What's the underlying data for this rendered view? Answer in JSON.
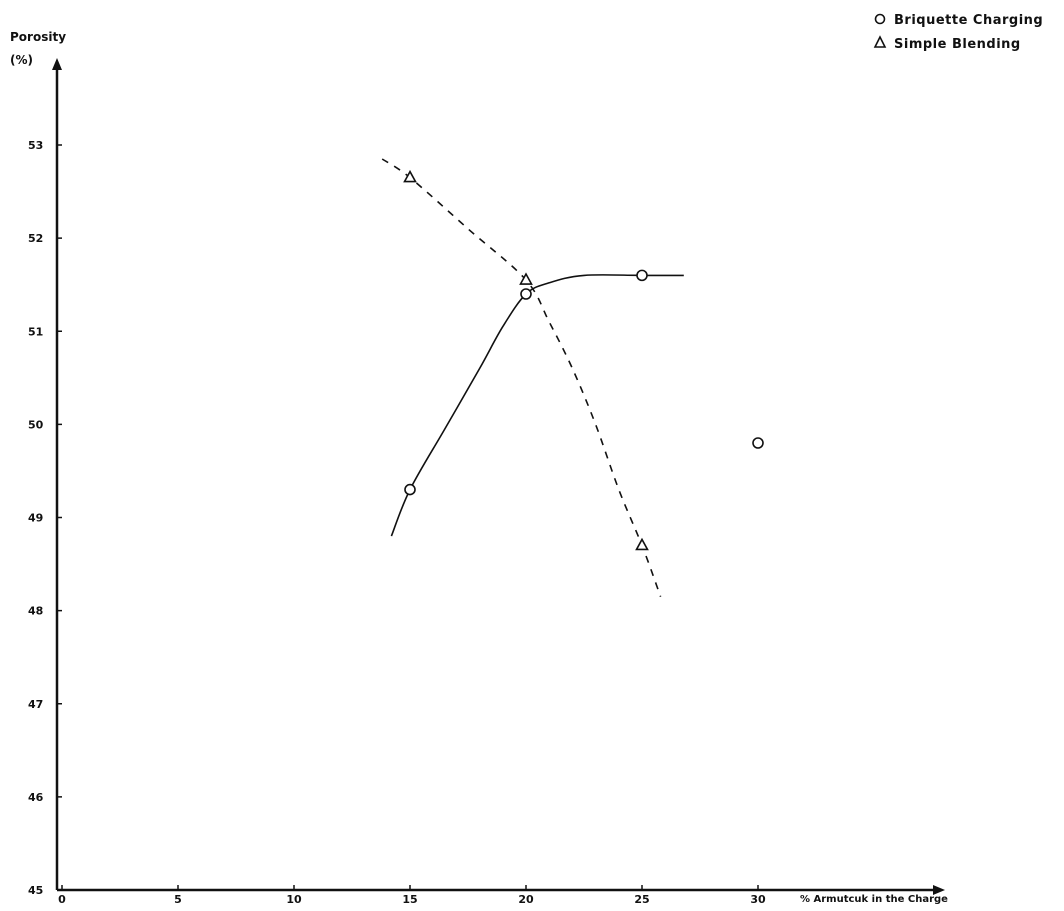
{
  "chart_data": {
    "type": "scatter",
    "title": "",
    "ylabel_line1": "Porosity",
    "ylabel_line2": "(%)",
    "xlabel": "% Armutcuk in the Charge",
    "xlim": [
      0,
      30
    ],
    "ylim": [
      45,
      53
    ],
    "xticks": [
      {
        "value": 0,
        "label": "0"
      },
      {
        "value": 5,
        "label": "5"
      },
      {
        "value": 10,
        "label": "10"
      },
      {
        "value": 15,
        "label": "15"
      },
      {
        "value": 20,
        "label": "20"
      },
      {
        "value": 25,
        "label": "25"
      },
      {
        "value": 30,
        "label": "30"
      }
    ],
    "yticks": [
      {
        "value": 45,
        "label": "45"
      },
      {
        "value": 46,
        "label": "46"
      },
      {
        "value": 47,
        "label": "47"
      },
      {
        "value": 48,
        "label": "48"
      },
      {
        "value": 49,
        "label": "49"
      },
      {
        "value": 50,
        "label": "50"
      },
      {
        "value": 51,
        "label": "51"
      },
      {
        "value": 52,
        "label": "52"
      },
      {
        "value": 53,
        "label": "53"
      }
    ],
    "grid": false,
    "legend_position": "top-right",
    "series": [
      {
        "name": "Briquette Charging",
        "marker": "circle",
        "line_style": "solid",
        "points": [
          {
            "x": 15,
            "y": 49.3
          },
          {
            "x": 20,
            "y": 51.4
          },
          {
            "x": 25,
            "y": 51.6
          },
          {
            "x": 30,
            "y": 49.8
          }
        ],
        "fit_curve": [
          {
            "x": 14.2,
            "y": 48.8
          },
          {
            "x": 15,
            "y": 49.3
          },
          {
            "x": 16.5,
            "y": 49.95
          },
          {
            "x": 18,
            "y": 50.6
          },
          {
            "x": 19,
            "y": 51.05
          },
          {
            "x": 20,
            "y": 51.4
          },
          {
            "x": 21,
            "y": 51.52
          },
          {
            "x": 22.5,
            "y": 51.6
          },
          {
            "x": 25,
            "y": 51.6
          },
          {
            "x": 26.8,
            "y": 51.6
          }
        ]
      },
      {
        "name": "Simple Blending",
        "marker": "triangle",
        "line_style": "dashed",
        "points": [
          {
            "x": 15,
            "y": 52.65
          },
          {
            "x": 20,
            "y": 51.55
          },
          {
            "x": 25,
            "y": 48.7
          }
        ],
        "fit_curve": [
          {
            "x": 13.8,
            "y": 52.85
          },
          {
            "x": 15,
            "y": 52.65
          },
          {
            "x": 17.5,
            "y": 52.1
          },
          {
            "x": 20,
            "y": 51.55
          },
          {
            "x": 21,
            "y": 51.1
          },
          {
            "x": 22,
            "y": 50.6
          },
          {
            "x": 23,
            "y": 50.0
          },
          {
            "x": 24,
            "y": 49.3
          },
          {
            "x": 25,
            "y": 48.7
          },
          {
            "x": 25.8,
            "y": 48.15
          }
        ]
      }
    ]
  }
}
